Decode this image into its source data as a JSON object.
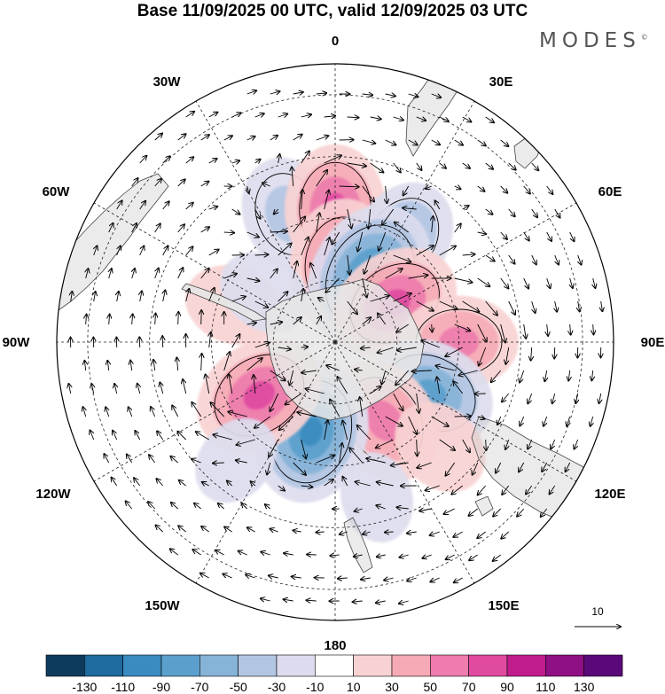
{
  "title": "Base 11/09/2025 00 UTC, valid 12/09/2025 03 UTC",
  "brand": "MODES",
  "brand_mark": "©",
  "projection": "south-polar-stereographic",
  "longitude_labels": {
    "lon_0": "0",
    "lon_30e": "30E",
    "lon_60e": "60E",
    "lon_90e": "90E",
    "lon_120e": "120E",
    "lon_150e": "150E",
    "lon_180": "180",
    "lon_150w": "150W",
    "lon_120w": "120W",
    "lon_90w": "90W",
    "lon_60w": "60W",
    "lon_30w": "30W"
  },
  "reference_vector": {
    "label": "10"
  },
  "colorbar": {
    "colors": [
      "#0d3b5e",
      "#1f6a9e",
      "#3a8bc0",
      "#5b9fcc",
      "#86b3d8",
      "#b2c6e3",
      "#dcdcee",
      "#ffffff",
      "#f8d2d2",
      "#f5aab5",
      "#ee7cac",
      "#e04a9f",
      "#c01c8d",
      "#8f0f84",
      "#5a0a78"
    ],
    "labels": [
      "-130",
      "-110",
      "-90",
      "-70",
      "-50",
      "-30",
      "-10",
      "10",
      "30",
      "50",
      "70",
      "90",
      "110",
      "130"
    ]
  },
  "anomaly_centers": [
    {
      "lon": -20,
      "colat": 44,
      "value": -50
    },
    {
      "lon": 0,
      "colat": 43,
      "value": 72
    },
    {
      "lon": 33,
      "colat": 40,
      "value": -55
    },
    {
      "lon": 5,
      "colat": 25,
      "value": 78
    },
    {
      "lon": 28,
      "colat": 24,
      "value": -105
    },
    {
      "lon": 57,
      "colat": 23,
      "value": 75
    },
    {
      "lon": 90,
      "colat": 40,
      "value": 55
    },
    {
      "lon": 118,
      "colat": 35,
      "value": -72
    },
    {
      "lon": 148,
      "colat": 30,
      "value": 70
    },
    {
      "lon": -165,
      "colat": 30,
      "value": -95
    },
    {
      "lon": -125,
      "colat": 30,
      "value": 78
    },
    {
      "lon": -70,
      "colat": 35,
      "value": 22
    },
    {
      "lon": -55,
      "colat": 28,
      "value": -15
    },
    {
      "lon": 135,
      "colat": 48,
      "value": 25
    },
    {
      "lon": -140,
      "colat": 50,
      "value": -12
    },
    {
      "lon": 165,
      "colat": 52,
      "value": -10
    }
  ],
  "colors": {
    "antarctica": "#e6e6e6",
    "coast": "#444444",
    "grid": "#222222"
  }
}
